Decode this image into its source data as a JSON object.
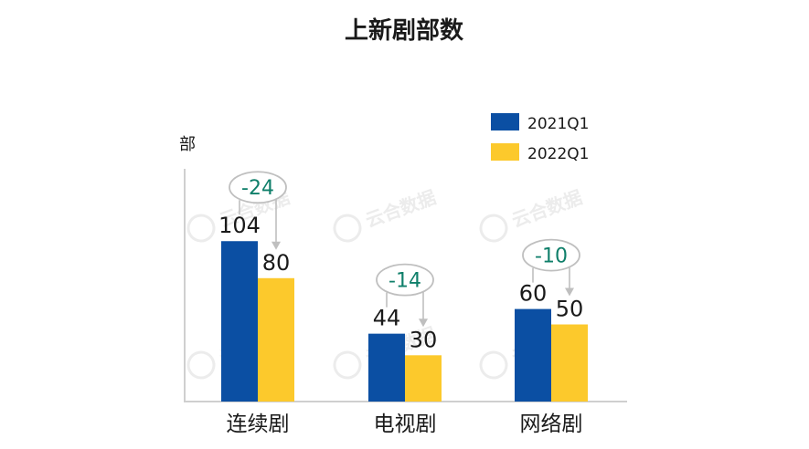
{
  "chart_data": {
    "type": "bar",
    "title": "上新剧部数",
    "ylabel": "部",
    "xlabel": "",
    "categories": [
      "连续剧",
      "电视剧",
      "网络剧"
    ],
    "series": [
      {
        "name": "2021Q1",
        "color": "#0b4fa3",
        "values": [
          104,
          44,
          60
        ]
      },
      {
        "name": "2022Q1",
        "color": "#fcc92c",
        "values": [
          80,
          30,
          50
        ]
      }
    ],
    "differences": [
      "-24",
      "-14",
      "-10"
    ],
    "ylim": [
      0,
      140
    ],
    "grid": false,
    "legend": "top-right",
    "watermark": "云合数据"
  }
}
